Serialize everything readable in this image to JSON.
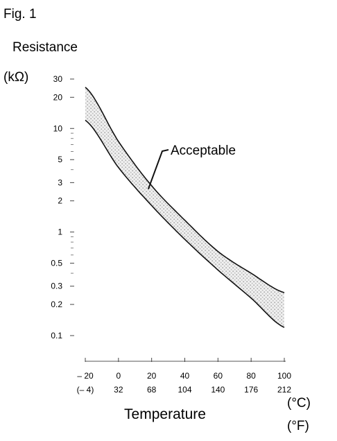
{
  "figure_label": "Fig. 1",
  "chart_data": {
    "type": "area",
    "title": "Resistance",
    "ylabel_unit": "(kΩ)",
    "xlabel": "Temperature",
    "xunit_c": "(°C)",
    "xunit_f": "(°F)",
    "yscale": "log",
    "ylim": [
      0.1,
      30
    ],
    "xlim": [
      -20,
      100
    ],
    "grid": false,
    "y_ticks": [
      {
        "value": 30,
        "label": "30"
      },
      {
        "value": 20,
        "label": "20"
      },
      {
        "value": 10,
        "label": "10"
      },
      {
        "value": 5,
        "label": "5"
      },
      {
        "value": 3,
        "label": "3"
      },
      {
        "value": 2,
        "label": "2"
      },
      {
        "value": 1,
        "label": "1"
      },
      {
        "value": 0.5,
        "label": "0.5"
      },
      {
        "value": 0.3,
        "label": "0.3"
      },
      {
        "value": 0.2,
        "label": "0.2"
      },
      {
        "value": 0.1,
        "label": "0.1"
      }
    ],
    "x_ticks": [
      {
        "c": -20,
        "c_label": "– 20",
        "f_label": "(– 4)"
      },
      {
        "c": 0,
        "c_label": "0",
        "f_label": "32"
      },
      {
        "c": 20,
        "c_label": "20",
        "f_label": "68"
      },
      {
        "c": 40,
        "c_label": "40",
        "f_label": "104"
      },
      {
        "c": 60,
        "c_label": "60",
        "f_label": "140"
      },
      {
        "c": 80,
        "c_label": "80",
        "f_label": "176"
      },
      {
        "c": 100,
        "c_label": "100",
        "f_label": "212"
      }
    ],
    "band": {
      "x": [
        -20,
        0,
        20,
        40,
        60,
        80,
        100
      ],
      "upper": [
        25,
        7.5,
        2.8,
        1.3,
        0.65,
        0.4,
        0.26
      ],
      "lower": [
        12,
        4.2,
        1.8,
        0.85,
        0.43,
        0.23,
        0.12
      ]
    },
    "annotation": {
      "text": "Acceptable",
      "x": 18,
      "y": 2.6
    }
  }
}
